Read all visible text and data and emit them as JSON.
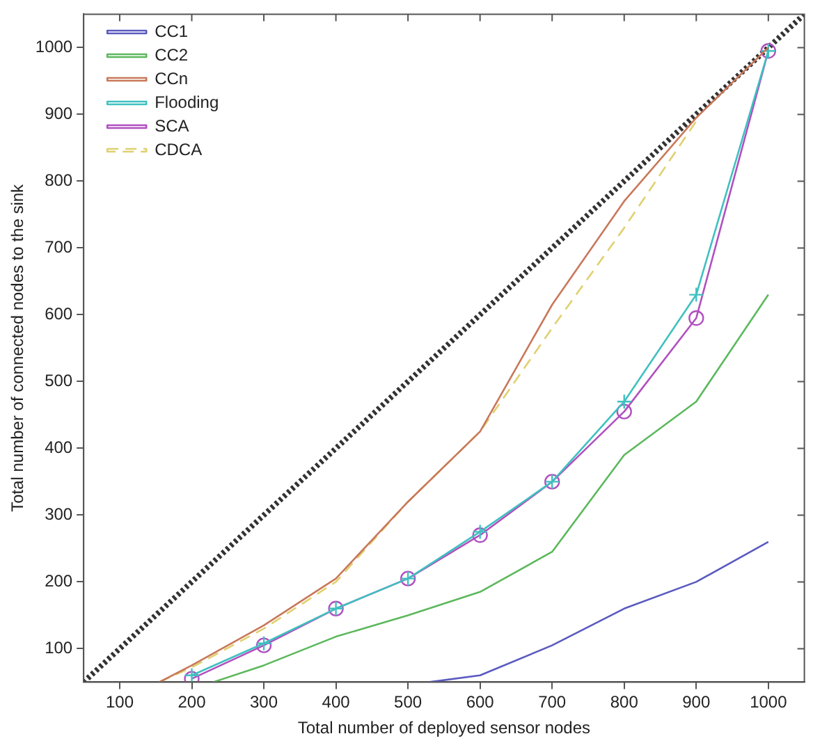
{
  "chart_data": {
    "type": "line",
    "xlabel": "Total number of deployed sensor nodes",
    "ylabel": "Total number of connected nodes to the sink",
    "xlim": [
      50,
      1050
    ],
    "ylim": [
      50,
      1050
    ],
    "xticks": [
      100,
      200,
      300,
      400,
      500,
      600,
      700,
      800,
      900,
      1000
    ],
    "yticks": [
      100,
      200,
      300,
      400,
      500,
      600,
      700,
      800,
      900,
      1000
    ],
    "grid": false,
    "legend": "top left",
    "series": [
      {
        "name": "CC1",
        "color": "#5a5ac0",
        "marker": "none",
        "line_style": "solid",
        "x": [
          530,
          600,
          700,
          800,
          900,
          1000
        ],
        "values": [
          50,
          60,
          105,
          160,
          200,
          260
        ]
      },
      {
        "name": "CC2",
        "color": "#5cb85c",
        "marker": "none",
        "line_style": "solid",
        "x": [
          230,
          300,
          400,
          500,
          600,
          700,
          800,
          900,
          1000
        ],
        "values": [
          50,
          75,
          118,
          150,
          185,
          245,
          390,
          470,
          630
        ]
      },
      {
        "name": "CCn",
        "color": "#c8785a",
        "marker": "none",
        "line_style": "solid",
        "x": [
          155,
          200,
          300,
          400,
          500,
          600,
          700,
          800,
          900,
          1000
        ],
        "values": [
          50,
          75,
          135,
          205,
          320,
          425,
          615,
          770,
          895,
          1000
        ]
      },
      {
        "name": "Flooding",
        "color": "#40c0c0",
        "marker": "cross",
        "line_style": "solid",
        "x": [
          200,
          300,
          400,
          500,
          600,
          700,
          800,
          900,
          1000
        ],
        "values": [
          60,
          108,
          160,
          205,
          275,
          350,
          470,
          630,
          995
        ]
      },
      {
        "name": "SCA",
        "color": "#b050c0",
        "marker": "circle",
        "line_style": "solid",
        "x": [
          200,
          300,
          400,
          500,
          600,
          700,
          800,
          900,
          1000
        ],
        "values": [
          55,
          105,
          160,
          205,
          270,
          350,
          455,
          595,
          995
        ]
      },
      {
        "name": "CDCA",
        "color": "#e0d070",
        "marker": "none",
        "line_style": "dashed",
        "x": [
          155,
          200,
          300,
          400,
          500,
          600,
          700,
          800,
          900
        ],
        "values": [
          50,
          72,
          130,
          200,
          320,
          425,
          580,
          730,
          890
        ]
      },
      {
        "color": "#333333",
        "marker": "none",
        "line_style": "dotted",
        "x": [
          50,
          1050
        ],
        "values": [
          50,
          1050
        ]
      }
    ]
  }
}
